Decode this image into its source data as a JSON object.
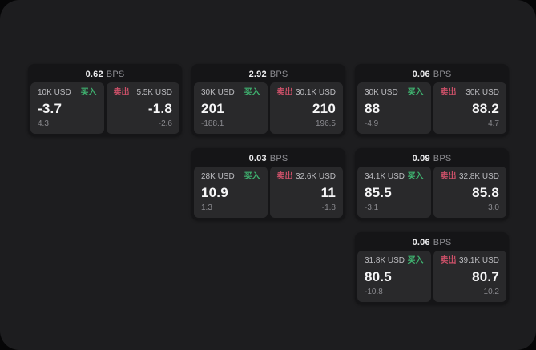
{
  "labels": {
    "bps": "BPS",
    "buy": "买入",
    "sell": "卖出"
  },
  "colors": {
    "window_bg": "#1d1d1f",
    "card_bg": "#151517",
    "panel_bg": "#29292b",
    "buy_green": "#3fb370",
    "sell_red": "#cb5068",
    "value_white": "#f6f6f7",
    "muted_gray": "#8b8b90"
  },
  "cards": [
    {
      "bps": "0.62",
      "row": 1,
      "col": 1,
      "buy": {
        "notional": "10K USD",
        "value": "-3.7",
        "sub": "4.3"
      },
      "sell": {
        "notional": "5.5K USD",
        "value": "-1.8",
        "sub": "-2.6"
      }
    },
    {
      "bps": "2.92",
      "row": 1,
      "col": 2,
      "buy": {
        "notional": "30K USD",
        "value": "201",
        "sub": "-188.1"
      },
      "sell": {
        "notional": "30.1K USD",
        "value": "210",
        "sub": "196.5"
      }
    },
    {
      "bps": "0.06",
      "row": 1,
      "col": 3,
      "buy": {
        "notional": "30K USD",
        "value": "88",
        "sub": "-4.9"
      },
      "sell": {
        "notional": "30K USD",
        "value": "88.2",
        "sub": "4.7"
      }
    },
    {
      "bps": "0.03",
      "row": 2,
      "col": 2,
      "buy": {
        "notional": "28K USD",
        "value": "10.9",
        "sub": "1.3"
      },
      "sell": {
        "notional": "32.6K USD",
        "value": "11",
        "sub": "-1.8"
      }
    },
    {
      "bps": "0.09",
      "row": 2,
      "col": 3,
      "buy": {
        "notional": "34.1K USD",
        "value": "85.5",
        "sub": "-3.1"
      },
      "sell": {
        "notional": "32.8K USD",
        "value": "85.8",
        "sub": "3.0"
      }
    },
    {
      "bps": "0.06",
      "row": 3,
      "col": 3,
      "buy": {
        "notional": "31.8K USD",
        "value": "80.5",
        "sub": "-10.8"
      },
      "sell": {
        "notional": "39.1K USD",
        "value": "80.7",
        "sub": "10.2"
      }
    }
  ]
}
